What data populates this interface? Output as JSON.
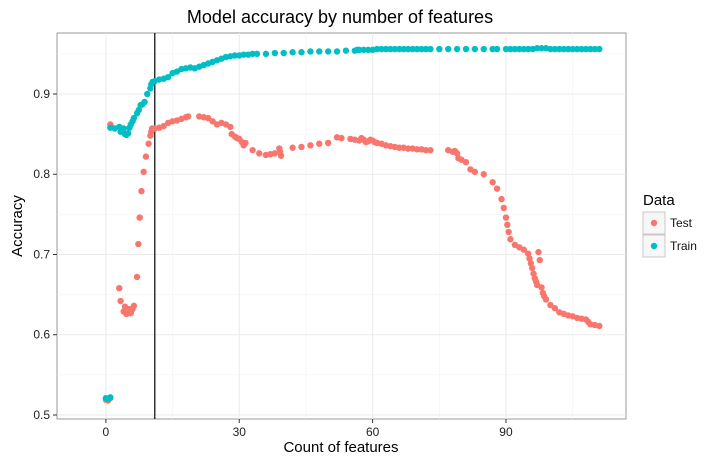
{
  "chart_data": {
    "type": "scatter",
    "title": "Model accuracy by number of features",
    "xlabel": "Count of features",
    "ylabel": "Accuracy",
    "xlim": [
      -11,
      117
    ],
    "ylim": [
      0.495,
      0.976
    ],
    "x_ticks": [
      0,
      30,
      60,
      90
    ],
    "y_ticks": [
      0.5,
      0.6,
      0.7,
      0.8,
      0.9
    ],
    "x_tick_labels": [
      "0",
      "30",
      "60",
      "90"
    ],
    "y_tick_labels": [
      "0.5",
      "0.6",
      "0.7",
      "0.8",
      "0.9"
    ],
    "grid": true,
    "legend": {
      "title": "Data",
      "placement": "right"
    },
    "vline": 11,
    "series": [
      {
        "name": "Test",
        "color": "#F8766D",
        "points": [
          [
            0,
            0.519
          ],
          [
            0.5,
            0.518
          ],
          [
            1,
            0.521
          ],
          [
            1,
            0.862
          ],
          [
            1.2,
            0.859
          ],
          [
            3,
            0.658
          ],
          [
            3.3,
            0.642
          ],
          [
            4,
            0.629
          ],
          [
            4.3,
            0.635
          ],
          [
            4.6,
            0.626
          ],
          [
            5,
            0.627
          ],
          [
            5.3,
            0.632
          ],
          [
            5.6,
            0.627
          ],
          [
            6,
            0.632
          ],
          [
            6.3,
            0.636
          ],
          [
            7,
            0.672
          ],
          [
            7.3,
            0.713
          ],
          [
            7.6,
            0.746
          ],
          [
            8,
            0.779
          ],
          [
            8.5,
            0.803
          ],
          [
            9,
            0.822
          ],
          [
            9.6,
            0.838
          ],
          [
            10,
            0.848
          ],
          [
            10.2,
            0.853
          ],
          [
            10.4,
            0.857
          ],
          [
            11,
            0.857
          ],
          [
            12,
            0.858
          ],
          [
            13,
            0.86
          ],
          [
            14,
            0.864
          ],
          [
            15,
            0.866
          ],
          [
            16,
            0.867
          ],
          [
            17,
            0.869
          ],
          [
            18,
            0.871
          ],
          [
            18.5,
            0.872
          ],
          [
            21,
            0.872
          ],
          [
            22,
            0.871
          ],
          [
            23,
            0.87
          ],
          [
            24,
            0.866
          ],
          [
            25,
            0.862
          ],
          [
            26,
            0.864
          ],
          [
            27,
            0.862
          ],
          [
            28,
            0.859
          ],
          [
            28.3,
            0.85
          ],
          [
            29,
            0.847
          ],
          [
            29.5,
            0.845
          ],
          [
            30,
            0.844
          ],
          [
            30.6,
            0.84
          ],
          [
            31,
            0.836
          ],
          [
            31.4,
            0.839
          ],
          [
            33,
            0.83
          ],
          [
            34.5,
            0.826
          ],
          [
            36,
            0.824
          ],
          [
            37,
            0.825
          ],
          [
            38,
            0.826
          ],
          [
            39,
            0.832
          ],
          [
            39.2,
            0.828
          ],
          [
            39.4,
            0.823
          ],
          [
            42,
            0.833
          ],
          [
            44,
            0.834
          ],
          [
            46,
            0.836
          ],
          [
            48,
            0.838
          ],
          [
            50,
            0.839
          ],
          [
            52,
            0.846
          ],
          [
            53,
            0.845
          ],
          [
            55,
            0.844
          ],
          [
            56,
            0.843
          ],
          [
            57,
            0.842
          ],
          [
            57.5,
            0.845
          ],
          [
            58,
            0.843
          ],
          [
            58.5,
            0.84
          ],
          [
            59,
            0.841
          ],
          [
            59.5,
            0.843
          ],
          [
            60,
            0.842
          ],
          [
            60.5,
            0.84
          ],
          [
            61,
            0.839
          ],
          [
            62,
            0.838
          ],
          [
            63,
            0.836
          ],
          [
            64,
            0.835
          ],
          [
            65,
            0.834
          ],
          [
            66,
            0.833
          ],
          [
            67,
            0.833
          ],
          [
            68,
            0.832
          ],
          [
            69,
            0.832
          ],
          [
            70,
            0.831
          ],
          [
            71,
            0.831
          ],
          [
            72,
            0.83
          ],
          [
            73,
            0.83
          ],
          [
            77,
            0.83
          ],
          [
            78,
            0.828
          ],
          [
            78.5,
            0.829
          ],
          [
            79,
            0.826
          ],
          [
            79.3,
            0.82
          ],
          [
            80,
            0.818
          ],
          [
            81,
            0.815
          ],
          [
            82,
            0.806
          ],
          [
            83,
            0.803
          ],
          [
            85,
            0.8
          ],
          [
            87,
            0.79
          ],
          [
            88,
            0.782
          ],
          [
            89,
            0.769
          ],
          [
            89.5,
            0.758
          ],
          [
            90,
            0.746
          ],
          [
            90.3,
            0.737
          ],
          [
            90.6,
            0.728
          ],
          [
            91,
            0.719
          ],
          [
            92,
            0.712
          ],
          [
            93,
            0.709
          ],
          [
            94,
            0.706
          ],
          [
            95,
            0.701
          ],
          [
            95.3,
            0.695
          ],
          [
            95.6,
            0.689
          ],
          [
            95.9,
            0.683
          ],
          [
            96.2,
            0.676
          ],
          [
            96.5,
            0.67
          ],
          [
            96.8,
            0.666
          ],
          [
            97,
            0.662
          ],
          [
            97.3,
            0.703
          ],
          [
            97.6,
            0.693
          ],
          [
            98,
            0.659
          ],
          [
            98.3,
            0.652
          ],
          [
            98.6,
            0.648
          ],
          [
            99,
            0.644
          ],
          [
            100,
            0.637
          ],
          [
            101,
            0.633
          ],
          [
            102,
            0.628
          ],
          [
            103,
            0.626
          ],
          [
            104,
            0.624
          ],
          [
            105,
            0.623
          ],
          [
            106,
            0.621
          ],
          [
            107,
            0.62
          ],
          [
            108,
            0.619
          ],
          [
            108.5,
            0.616
          ],
          [
            109,
            0.613
          ],
          [
            110,
            0.612
          ],
          [
            111,
            0.611
          ]
        ]
      },
      {
        "name": "Train",
        "color": "#00BFC4",
        "points": [
          [
            0,
            0.521
          ],
          [
            0.5,
            0.52
          ],
          [
            1,
            0.522
          ],
          [
            1,
            0.858
          ],
          [
            2,
            0.857
          ],
          [
            3,
            0.859
          ],
          [
            3.3,
            0.853
          ],
          [
            4,
            0.857
          ],
          [
            4.3,
            0.85
          ],
          [
            4.6,
            0.849
          ],
          [
            5,
            0.851
          ],
          [
            5.3,
            0.858
          ],
          [
            5.6,
            0.862
          ],
          [
            6,
            0.866
          ],
          [
            6.3,
            0.87
          ],
          [
            7,
            0.876
          ],
          [
            7.4,
            0.88
          ],
          [
            7.8,
            0.886
          ],
          [
            8.2,
            0.887
          ],
          [
            8.7,
            0.89
          ],
          [
            9.3,
            0.9
          ],
          [
            10,
            0.907
          ],
          [
            10.2,
            0.912
          ],
          [
            10.5,
            0.915
          ],
          [
            11,
            0.916
          ],
          [
            12,
            0.918
          ],
          [
            13,
            0.919
          ],
          [
            14,
            0.921
          ],
          [
            15,
            0.926
          ],
          [
            16,
            0.928
          ],
          [
            17,
            0.931
          ],
          [
            18,
            0.932
          ],
          [
            19,
            0.933
          ],
          [
            20,
            0.932
          ],
          [
            21,
            0.934
          ],
          [
            22,
            0.936
          ],
          [
            23,
            0.938
          ],
          [
            24,
            0.94
          ],
          [
            25,
            0.942
          ],
          [
            26,
            0.944
          ],
          [
            27,
            0.946
          ],
          [
            28,
            0.947
          ],
          [
            29,
            0.948
          ],
          [
            30,
            0.948
          ],
          [
            31,
            0.949
          ],
          [
            32,
            0.949
          ],
          [
            33,
            0.95
          ],
          [
            34,
            0.95
          ],
          [
            36,
            0.95
          ],
          [
            38,
            0.951
          ],
          [
            40,
            0.951
          ],
          [
            42,
            0.952
          ],
          [
            44,
            0.952
          ],
          [
            46,
            0.953
          ],
          [
            48,
            0.953
          ],
          [
            50,
            0.953
          ],
          [
            52,
            0.953
          ],
          [
            54,
            0.954
          ],
          [
            56,
            0.954
          ],
          [
            56.5,
            0.955
          ],
          [
            57,
            0.955
          ],
          [
            58,
            0.955
          ],
          [
            59,
            0.955
          ],
          [
            60,
            0.955
          ],
          [
            61,
            0.956
          ],
          [
            62,
            0.956
          ],
          [
            63,
            0.956
          ],
          [
            64,
            0.956
          ],
          [
            65,
            0.956
          ],
          [
            66,
            0.956
          ],
          [
            67,
            0.956
          ],
          [
            68,
            0.956
          ],
          [
            69,
            0.956
          ],
          [
            70,
            0.956
          ],
          [
            71,
            0.956
          ],
          [
            72,
            0.956
          ],
          [
            73,
            0.956
          ],
          [
            75,
            0.956
          ],
          [
            77,
            0.956
          ],
          [
            79,
            0.956
          ],
          [
            81,
            0.956
          ],
          [
            83,
            0.956
          ],
          [
            85,
            0.956
          ],
          [
            87,
            0.956
          ],
          [
            88,
            0.956
          ],
          [
            90,
            0.956
          ],
          [
            91,
            0.956
          ],
          [
            92,
            0.956
          ],
          [
            93,
            0.956
          ],
          [
            94,
            0.956
          ],
          [
            95,
            0.956
          ],
          [
            96,
            0.956
          ],
          [
            97,
            0.957
          ],
          [
            98,
            0.957
          ],
          [
            99,
            0.957
          ],
          [
            100,
            0.956
          ],
          [
            101,
            0.956
          ],
          [
            102,
            0.956
          ],
          [
            103,
            0.956
          ],
          [
            104,
            0.956
          ],
          [
            105,
            0.956
          ],
          [
            106,
            0.956
          ],
          [
            107,
            0.956
          ],
          [
            108,
            0.956
          ],
          [
            109,
            0.956
          ],
          [
            110,
            0.956
          ],
          [
            111,
            0.956
          ]
        ]
      }
    ]
  }
}
